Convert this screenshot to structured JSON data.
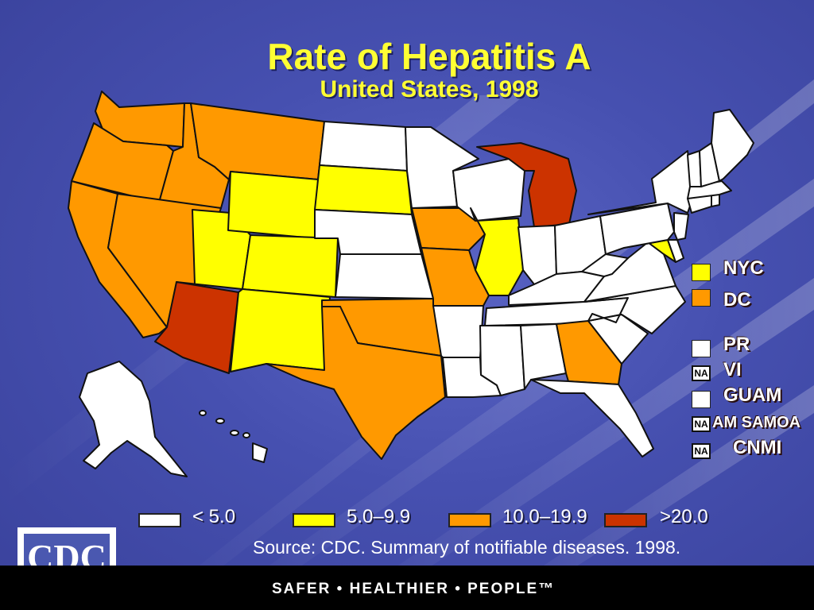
{
  "title": "Rate of Hepatitis A",
  "subtitle": "United States, 1998",
  "colors": {
    "background": "#4650b0",
    "lt5": "#ffffff",
    "r5to10": "#ffff00",
    "r10to20": "#ff9900",
    "gt20": "#cc3300",
    "title": "#ffff33"
  },
  "legend_categories": [
    {
      "label": "< 5.0",
      "key": "lt5"
    },
    {
      "label": "5.0–9.9",
      "key": "r5to10"
    },
    {
      "label": "10.0–19.9",
      "key": "r10to20"
    },
    {
      "label": ">20.0",
      "key": "gt20"
    }
  ],
  "territories": [
    {
      "name": "NYC",
      "category": "r5to10"
    },
    {
      "name": "DC",
      "category": "r10to20"
    },
    {
      "name": "PR",
      "category": "lt5"
    },
    {
      "name": "VI",
      "category": "na",
      "badge": "NA"
    },
    {
      "name": "GUAM",
      "category": "lt5"
    },
    {
      "name": "AM SAMOA",
      "category": "na",
      "badge": "NA"
    },
    {
      "name": "CNMI",
      "category": "na",
      "badge": "NA"
    }
  ],
  "states": {
    "WA": "r10to20",
    "OR": "r10to20",
    "CA": "r10to20",
    "ID": "r10to20",
    "MT": "r10to20",
    "NV": "r10to20",
    "AZ": "gt20",
    "UT": "r5to10",
    "WY": "r5to10",
    "CO": "r5to10",
    "NM": "r5to10",
    "ND": "lt5",
    "SD": "r5to10",
    "NE": "lt5",
    "KS": "lt5",
    "OK": "r10to20",
    "TX": "r10to20",
    "MN": "lt5",
    "IA": "r10to20",
    "MO": "r10to20",
    "AR": "lt5",
    "LA": "lt5",
    "WI": "lt5",
    "IL": "r5to10",
    "MI": "gt20",
    "IN": "lt5",
    "OH": "lt5",
    "KY": "lt5",
    "TN": "lt5",
    "MS": "lt5",
    "AL": "lt5",
    "GA": "r10to20",
    "FL": "lt5",
    "SC": "lt5",
    "NC": "lt5",
    "VA": "lt5",
    "WV": "lt5",
    "MD": "r5to10",
    "DE": "lt5",
    "PA": "lt5",
    "NY": "lt5",
    "NJ": "lt5",
    "CT": "lt5",
    "RI": "lt5",
    "MA": "lt5",
    "VT": "lt5",
    "NH": "lt5",
    "ME": "lt5",
    "AK": "lt5",
    "HI": "lt5"
  },
  "source": "Source:  CDC. Summary of notifiable diseases. 1998.",
  "logo_text": "CDC",
  "footer_text": "SAFER • HEALTHIER • PEOPLE™"
}
